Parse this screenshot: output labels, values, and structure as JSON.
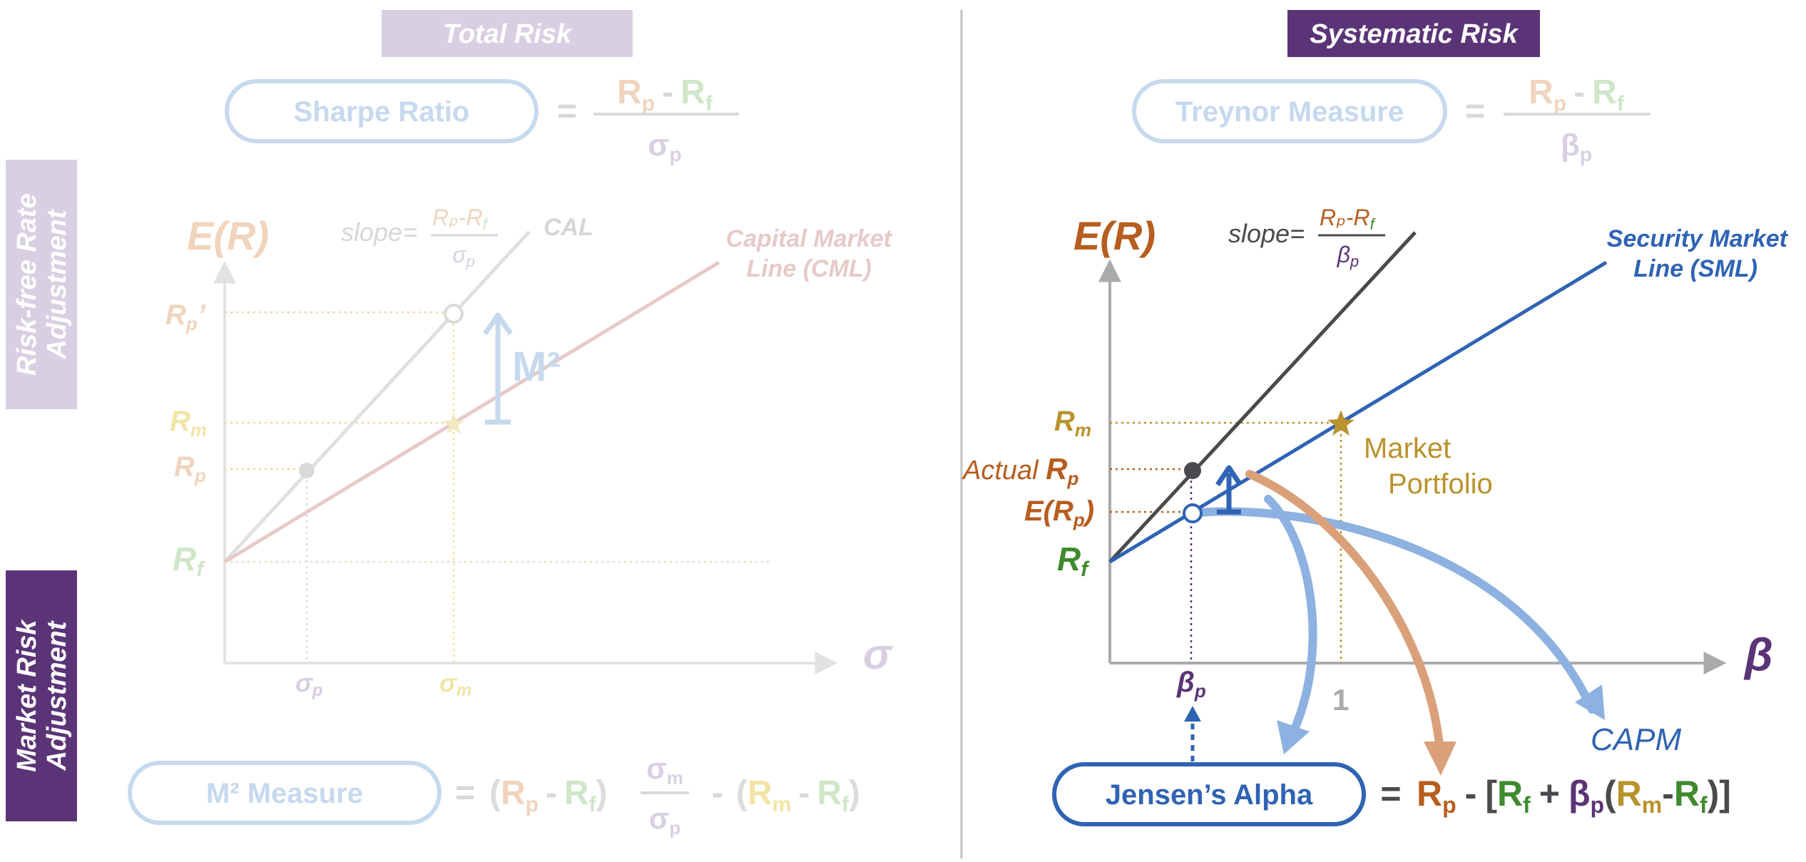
{
  "headers": {
    "total_risk": "Total Risk",
    "systematic_risk": "Systematic Risk"
  },
  "side_labels": {
    "risk_free_line1": "Risk-free Rate",
    "risk_free_line2": "Adjustment",
    "market_risk_line1": "Market Risk",
    "market_risk_line2": "Adjustment"
  },
  "formulas": {
    "sharpe": {
      "name": "Sharpe Ratio",
      "eq": "=",
      "num_a": "R",
      "num_a_sub": "p",
      "minus": "-",
      "num_b": "R",
      "num_b_sub": "f",
      "den": "σ",
      "den_sub": "p"
    },
    "treynor": {
      "name": "Treynor Measure",
      "eq": "=",
      "num_a": "R",
      "num_a_sub": "p",
      "minus": "-",
      "num_b": "R",
      "num_b_sub": "f",
      "den": "β",
      "den_sub": "p"
    },
    "m2": {
      "name": "M² Measure",
      "eq": "=",
      "lp": "(",
      "ra": "R",
      "ra_sub": "p",
      "minus": "-",
      "rb": "R",
      "rb_sub": "f",
      "rp": ")",
      "frac_num": "σ",
      "frac_num_sub": "m",
      "frac_den": "σ",
      "frac_den_sub": "p",
      "minus2": "-",
      "lp2": "(",
      "rc": "R",
      "rc_sub": "m",
      "minus3": "-",
      "rd": "R",
      "rd_sub": "f",
      "rp2": ")"
    },
    "jensen": {
      "name": "Jensen’s Alpha",
      "eq": "=",
      "rp": "R",
      "rp_sub": "p",
      "minus": "-",
      "lb": "[",
      "rf": "R",
      "rf_sub": "f",
      "plus": "+",
      "beta": "β",
      "beta_sub": "p",
      "lp": "(",
      "rm": "R",
      "rm_sub": "m",
      "minus2": "-",
      "rf2": "R",
      "rf2_sub": "f",
      "rp2": ")]"
    }
  },
  "left_chart": {
    "y_axis_label": "E(R)",
    "x_axis_label": "σ",
    "slope_label": "slope=",
    "slope_num": "Rₚ-R",
    "slope_num_sub": "f",
    "slope_den": "σ",
    "slope_den_sub": "p",
    "cal_label": "CAL",
    "cml_line1": "Capital Market",
    "cml_line2": "Line (CML)",
    "m2_label": "M²",
    "y_ticks": {
      "rp_prime": "R",
      "rp_prime_sub": "p",
      "rp_prime_mark": "’",
      "rm": "R",
      "rm_sub": "m",
      "rp": "R",
      "rp_sub": "p",
      "rf": "R",
      "rf_sub": "f"
    },
    "x_ticks": {
      "sp": "σ",
      "sp_sub": "p",
      "sm": "σ",
      "sm_sub": "m"
    }
  },
  "right_chart": {
    "y_axis_label": "E(R)",
    "x_axis_label": "β",
    "slope_label": "slope=",
    "slope_num": "Rₚ-R",
    "slope_num_sub": "f",
    "slope_den": "β",
    "slope_den_sub": "p",
    "sml_line1": "Security Market",
    "sml_line2": "Line (SML)",
    "market_line1": "Market",
    "market_line2": "Portfolio",
    "capm_label": "CAPM",
    "y_ticks": {
      "rm": "R",
      "rm_sub": "m",
      "actual": "Actual ",
      "actual_r": "R",
      "actual_sub": "p",
      "erp": "E(R",
      "erp_sub": "p",
      "erp_close": ")",
      "rf": "R",
      "rf_sub": "f"
    },
    "x_ticks": {
      "bp": "β",
      "bp_sub": "p",
      "one": "1"
    }
  },
  "colors": {
    "purple_dark": "#5b3477",
    "purple_light": "#d6cce0",
    "blue": "#2f63b4",
    "blue_light": "#c6d9ee",
    "blue_arrow": "#8db1e0",
    "orange": "#b75d1f",
    "orange_light": "#d9a07a",
    "green": "#3f8a2e",
    "gold": "#b8922c",
    "gray_dark": "#4a4a4e",
    "gray": "#aaaaaa"
  }
}
